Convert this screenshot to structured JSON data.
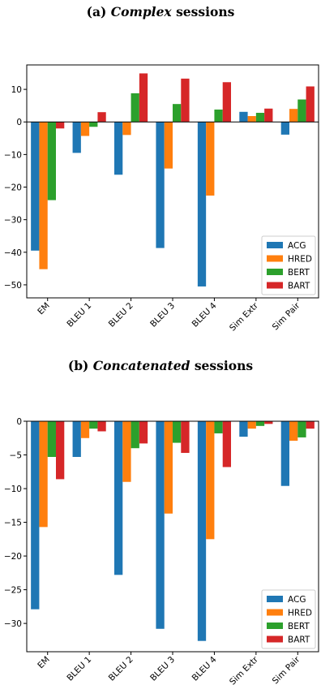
{
  "chart_data": [
    {
      "type": "bar",
      "title": "(a) Complex sessions",
      "title_prefix": "(a) ",
      "title_emph": "Complex",
      "title_suffix": " sessions",
      "categories": [
        "EM",
        "BLEU 1",
        "BLEU 2",
        "BLEU 3",
        "BLEU 4",
        "Sim Extr",
        "Sim Pair"
      ],
      "series": [
        {
          "name": "ACG",
          "color": "#1f77b4",
          "values": [
            -39.5,
            -9.5,
            -16.2,
            -38.7,
            -50.5,
            3.1,
            -3.9
          ]
        },
        {
          "name": "HRED",
          "color": "#ff7f0e",
          "values": [
            -45.2,
            -4.3,
            -4.0,
            -14.3,
            -22.6,
            1.8,
            4.0
          ]
        },
        {
          "name": "BERT",
          "color": "#2ca02c",
          "values": [
            -24.0,
            -1.5,
            8.8,
            5.5,
            3.8,
            2.8,
            6.9
          ]
        },
        {
          "name": "BART",
          "color": "#d62728",
          "values": [
            -2.0,
            3.0,
            14.9,
            13.3,
            12.2,
            4.1,
            10.9
          ]
        }
      ],
      "ylim": [
        -54,
        17.5
      ],
      "yticks": [
        -50,
        -40,
        -30,
        -20,
        -10,
        0,
        10
      ],
      "ytick_labels": [
        "−50",
        "−40",
        "−30",
        "−20",
        "−10",
        "0",
        "10"
      ],
      "legend_position": "bottom-right",
      "grid": false
    },
    {
      "type": "bar",
      "title": "(b) Concatenated sessions",
      "title_prefix": "(b) ",
      "title_emph": "Concatenated",
      "title_suffix": " sessions",
      "categories": [
        "EM",
        "BLEU 1",
        "BLEU 2",
        "BLEU 3",
        "BLEU 4",
        "Sim Extr",
        "Sim Pair"
      ],
      "series": [
        {
          "name": "ACG",
          "color": "#1f77b4",
          "values": [
            -27.9,
            -5.3,
            -22.8,
            -30.8,
            -32.6,
            -2.3,
            -9.6
          ]
        },
        {
          "name": "HRED",
          "color": "#ff7f0e",
          "values": [
            -15.7,
            -2.5,
            -9.0,
            -13.7,
            -17.5,
            -1.1,
            -2.9
          ]
        },
        {
          "name": "BERT",
          "color": "#2ca02c",
          "values": [
            -5.3,
            -1.1,
            -4.0,
            -3.2,
            -1.8,
            -0.7,
            -2.4
          ]
        },
        {
          "name": "BART",
          "color": "#d62728",
          "values": [
            -8.6,
            -1.5,
            -3.3,
            -4.7,
            -6.8,
            -0.4,
            -1.1
          ]
        }
      ],
      "ylim": [
        -34.2,
        0
      ],
      "yticks": [
        -30,
        -25,
        -20,
        -15,
        -10,
        -5,
        0
      ],
      "ytick_labels": [
        "−30",
        "−25",
        "−20",
        "−15",
        "−10",
        "−5",
        "0"
      ],
      "legend_position": "bottom-right",
      "grid": false
    }
  ]
}
